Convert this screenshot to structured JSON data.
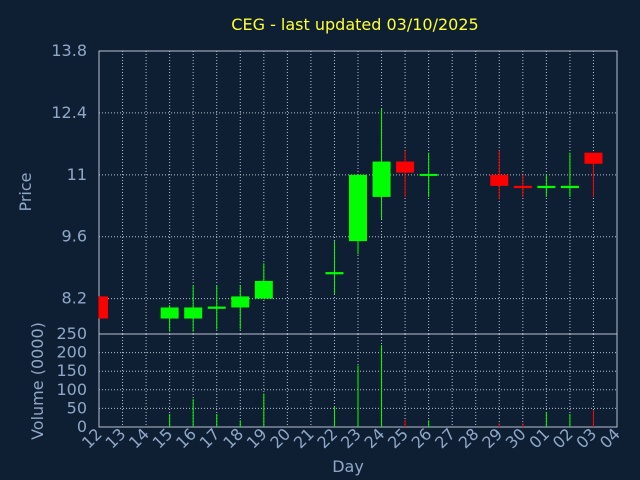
{
  "chart_data": {
    "type": "candlestick",
    "title": "CEG - last updated 03/10/2025",
    "xlabel": "Day",
    "price_panel": {
      "ylabel": "Price",
      "ylim": [
        7.4,
        13.8
      ],
      "yticks": [
        "13.8",
        "12.4",
        "11",
        "9.6",
        "8.2"
      ],
      "grid": true
    },
    "volume_panel": {
      "ylabel": "Volume (0000)",
      "ylim": [
        0,
        250
      ],
      "yticks": [
        "250",
        "200",
        "150",
        "100",
        "50",
        "0"
      ],
      "grid": true
    },
    "x_ticks": [
      "12",
      "13",
      "14",
      "15",
      "16",
      "17",
      "18",
      "19",
      "20",
      "21",
      "22",
      "23",
      "24",
      "25",
      "26",
      "27",
      "28",
      "29",
      "30",
      "01",
      "02",
      "03",
      "04"
    ],
    "colors": {
      "up": "#00ff00",
      "down": "#ff0000"
    },
    "candles": [
      {
        "day": "12",
        "open": 8.25,
        "close": 7.75,
        "high": 8.25,
        "low": 7.75,
        "volume": 0
      },
      {
        "day": "15",
        "open": 7.75,
        "close": 8.0,
        "high": 8.05,
        "low": 7.45,
        "volume": 35
      },
      {
        "day": "16",
        "open": 7.75,
        "close": 8.0,
        "high": 8.5,
        "low": 7.45,
        "volume": 75
      },
      {
        "day": "17",
        "open": 7.97,
        "close": 8.02,
        "high": 8.5,
        "low": 7.5,
        "volume": 35
      },
      {
        "day": "18",
        "open": 8.0,
        "close": 8.25,
        "high": 8.5,
        "low": 7.5,
        "volume": 18
      },
      {
        "day": "19",
        "open": 8.2,
        "close": 8.6,
        "high": 9.0,
        "low": 8.2,
        "volume": 90
      },
      {
        "day": "22",
        "open": 8.75,
        "close": 8.8,
        "high": 9.5,
        "low": 8.3,
        "volume": 55
      },
      {
        "day": "23",
        "open": 9.5,
        "close": 11.0,
        "high": 11.0,
        "low": 9.2,
        "volume": 165
      },
      {
        "day": "24",
        "open": 10.5,
        "close": 11.3,
        "high": 12.5,
        "low": 10.0,
        "volume": 220
      },
      {
        "day": "25",
        "open": 11.3,
        "close": 11.05,
        "high": 11.55,
        "low": 10.5,
        "volume": 20
      },
      {
        "day": "26",
        "open": 10.98,
        "close": 11.02,
        "high": 11.5,
        "low": 10.5,
        "volume": 18
      },
      {
        "day": "29",
        "open": 11.0,
        "close": 10.75,
        "high": 11.55,
        "low": 10.45,
        "volume": 10
      },
      {
        "day": "30",
        "open": 10.75,
        "close": 10.7,
        "high": 11.0,
        "low": 10.5,
        "volume": 10
      },
      {
        "day": "01",
        "open": 10.7,
        "close": 10.75,
        "high": 11.0,
        "low": 10.5,
        "volume": 40
      },
      {
        "day": "02",
        "open": 10.7,
        "close": 10.75,
        "high": 11.5,
        "low": 10.5,
        "volume": 35
      },
      {
        "day": "03",
        "open": 11.5,
        "close": 11.25,
        "high": 11.5,
        "low": 10.5,
        "volume": 45
      }
    ]
  }
}
